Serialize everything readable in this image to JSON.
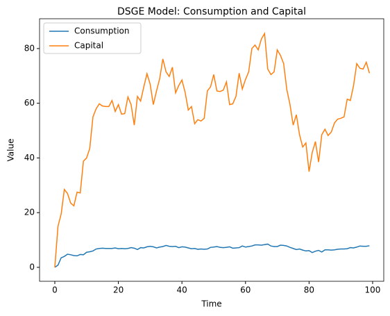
{
  "chart_data": {
    "type": "line",
    "title": "DSGE Model: Consumption and Capital",
    "xlabel": "Time",
    "ylabel": "Value",
    "x": [
      0,
      1,
      2,
      3,
      4,
      5,
      6,
      7,
      8,
      9,
      10,
      11,
      12,
      13,
      14,
      15,
      16,
      17,
      18,
      19,
      20,
      21,
      22,
      23,
      24,
      25,
      26,
      27,
      28,
      29,
      30,
      31,
      32,
      33,
      34,
      35,
      36,
      37,
      38,
      39,
      40,
      41,
      42,
      43,
      44,
      45,
      46,
      47,
      48,
      49,
      50,
      51,
      52,
      53,
      54,
      55,
      56,
      57,
      58,
      59,
      60,
      61,
      62,
      63,
      64,
      65,
      66,
      67,
      68,
      69,
      70,
      71,
      72,
      73,
      74,
      75,
      76,
      77,
      78,
      79,
      80,
      81,
      82,
      83,
      84,
      85,
      86,
      87,
      88,
      89,
      90,
      91,
      92,
      93,
      94,
      95,
      96,
      97,
      98,
      99
    ],
    "series": [
      {
        "name": "Consumption",
        "color": "#1f77b4",
        "values": [
          0,
          0.8,
          3.5,
          4,
          4.8,
          4.6,
          4.3,
          4.2,
          4.7,
          4.6,
          5.5,
          5.7,
          6,
          6.7,
          6.9,
          7,
          6.9,
          6.9,
          6.9,
          7.1,
          6.8,
          6.9,
          6.8,
          6.9,
          7.2,
          7,
          6.5,
          7.2,
          7.1,
          7.5,
          7.7,
          7.5,
          7.1,
          7.4,
          7.6,
          8,
          7.7,
          7.6,
          7.7,
          7.2,
          7.5,
          7.4,
          7.1,
          6.8,
          6.9,
          6.6,
          6.7,
          6.6,
          6.7,
          7.3,
          7.4,
          7.6,
          7.3,
          7.2,
          7.3,
          7.5,
          7,
          7.1,
          7.2,
          7.8,
          7.4,
          7.6,
          7.8,
          8.2,
          8.2,
          8.1,
          8.3,
          8.5,
          7.8,
          7.6,
          7.6,
          8.1,
          8,
          7.8,
          7.3,
          6.9,
          6.5,
          6.7,
          6.3,
          6,
          6.1,
          5.4,
          5.9,
          6.2,
          5.6,
          6.4,
          6.4,
          6.3,
          6.4,
          6.6,
          6.7,
          6.7,
          6.8,
          7.2,
          7.1,
          7.4,
          7.8,
          7.7,
          7.7,
          7.9
        ]
      },
      {
        "name": "Capital",
        "color": "#ff7f0e",
        "values": [
          0,
          15,
          19.5,
          28.5,
          27,
          23.5,
          22.5,
          27.5,
          27.2,
          38.8,
          40,
          43.5,
          55,
          58,
          59.8,
          59,
          58.8,
          58.8,
          61,
          57,
          59.5,
          56,
          56.2,
          62.3,
          59.5,
          52,
          62.5,
          60.8,
          66,
          70.8,
          67,
          59.5,
          64.5,
          69,
          76.2,
          71.5,
          69.8,
          73.2,
          63.8,
          66.5,
          68.5,
          64,
          57.5,
          58.8,
          52.5,
          54,
          53.5,
          54.5,
          64.5,
          66,
          70.5,
          64.5,
          64.3,
          64.8,
          67.8,
          59.5,
          59.8,
          62.5,
          71,
          65.2,
          68.7,
          71.5,
          80,
          81.3,
          79.5,
          83.5,
          85.5,
          72.5,
          70.5,
          71.5,
          79.5,
          77.5,
          74.5,
          65,
          59.5,
          52,
          55.8,
          48.5,
          44,
          45.5,
          35,
          42,
          46,
          38.5,
          48.5,
          50.5,
          48.2,
          49.5,
          52.8,
          54.2,
          54.5,
          55,
          61.5,
          61,
          66.5,
          74.5,
          72.8,
          72.5,
          75,
          71
        ]
      }
    ],
    "xlim": [
      -4.8,
      103.5
    ],
    "ylim": [
      -5.1,
      90.9
    ],
    "xticks": [
      0,
      20,
      40,
      60,
      80,
      100
    ],
    "yticks": [
      0,
      20,
      40,
      60,
      80
    ],
    "legend": "upper left"
  }
}
